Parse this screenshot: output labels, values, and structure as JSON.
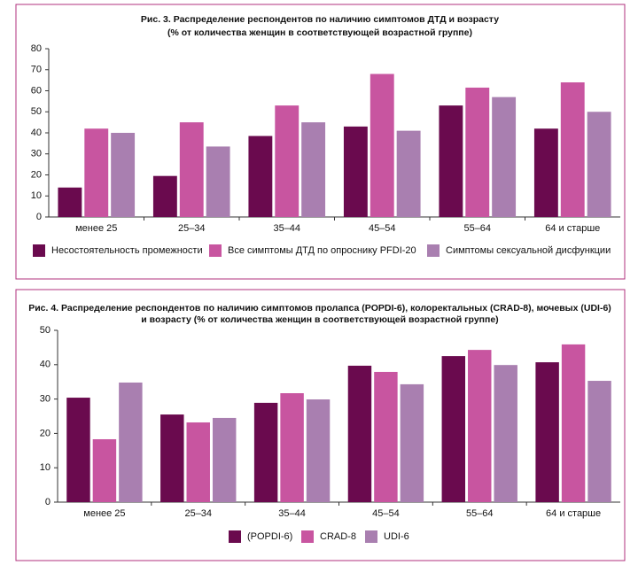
{
  "chart_data": [
    {
      "type": "bar",
      "title": [
        "Рис. 3. Распределение респондентов по наличию симптомов ДТД и возрасту",
        "(% от количества женщин в соответствующей возрастной группе)"
      ],
      "categories": [
        "менее 25",
        "25–34",
        "35–44",
        "45–54",
        "55–64",
        "64 и старше"
      ],
      "series": [
        {
          "name": "Несостоятельность промежности",
          "color": "#6a0a4e",
          "values": [
            14,
            19.5,
            38.5,
            43,
            53,
            42
          ]
        },
        {
          "name": "Все симптомы ДТД по опроснику PFDI-20",
          "color": "#c855a0",
          "values": [
            42,
            45,
            53,
            68,
            61.5,
            64
          ]
        },
        {
          "name": "Симптомы сексуальной дисфункции",
          "color": "#a97fb0",
          "values": [
            40,
            33.5,
            45,
            41,
            57,
            50
          ]
        }
      ],
      "ylim": [
        0,
        80
      ],
      "yticks": [
        0,
        10,
        20,
        30,
        40,
        50,
        60,
        70,
        80
      ]
    },
    {
      "type": "bar",
      "title": [
        "Рис. 4. Распределение респондентов по наличию симптомов пролапса (POPDI-6), колоректальных (CRAD-8), мочевых (UDI-6)",
        "и возрасту (% от количества женщин в соответствующей возрастной группе)"
      ],
      "categories": [
        "менее 25",
        "25–34",
        "35–44",
        "45–54",
        "55–64",
        "64 и старше"
      ],
      "series": [
        {
          "name": "(POPDI-6)",
          "color": "#6a0a4e",
          "values": [
            30.4,
            25.5,
            28.9,
            39.7,
            42.5,
            40.7
          ]
        },
        {
          "name": "CRAD-8",
          "color": "#c855a0",
          "values": [
            18.3,
            23.2,
            31.7,
            37.9,
            44.3,
            45.9
          ]
        },
        {
          "name": "UDI-6",
          "color": "#a97fb0",
          "values": [
            34.8,
            24.5,
            29.9,
            34.3,
            39.9,
            35.3
          ]
        }
      ],
      "ylim": [
        0,
        50
      ],
      "yticks": [
        0,
        10,
        20,
        30,
        40,
        50
      ]
    }
  ]
}
